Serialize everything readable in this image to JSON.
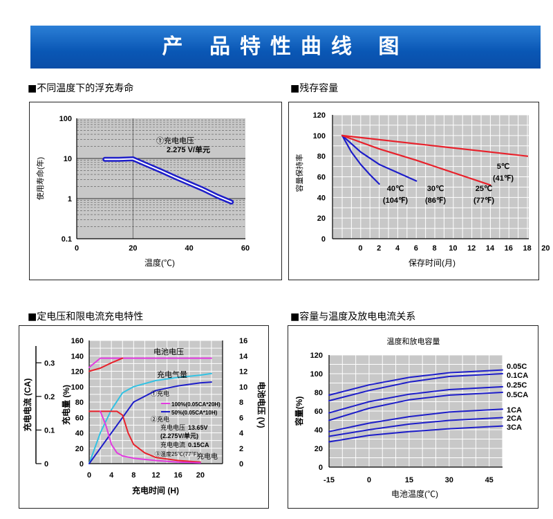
{
  "page": {
    "title": "产 品特性曲线 图"
  },
  "captions": [
    "■不同温度下的浮充寿命",
    "■残存容量",
    "■定电压和限电流充电特性",
    "■容量与温度及放电电流关系"
  ],
  "colors": {
    "banner": "#0a57b5",
    "grid_bg": "#c8c8c8",
    "blue": "#1d1dc9",
    "red": "#e8202a",
    "cyan": "#32c2e3",
    "magenta": "#e23ae0"
  },
  "chart_data": [
    {
      "type": "line",
      "title": "",
      "xlabel": "温度(℃)",
      "ylabel": "使用寿命(年)",
      "xlim": [
        0,
        60
      ],
      "ylim": [
        0.1,
        100
      ],
      "y_scale": "log",
      "x_ticks": [
        "0",
        "20",
        "40",
        "60"
      ],
      "y_ticks": [
        "100",
        "10",
        "1",
        "0.1"
      ],
      "annotations": [
        "①充电电压",
        "2.275 V/单元"
      ],
      "series": [
        {
          "x": [
            10,
            15,
            20,
            25,
            30,
            35,
            40,
            45,
            50,
            55
          ],
          "y": [
            9.5,
            9.5,
            9.8,
            6.9,
            4.9,
            3.4,
            2.4,
            1.7,
            1.15,
            0.82
          ]
        }
      ]
    },
    {
      "type": "line",
      "title": "",
      "xlabel": "保存时间(月)",
      "ylabel": "容量保持率",
      "ylim": [
        0,
        120
      ],
      "x_ticks": [
        "0",
        "2",
        "4",
        "6",
        "8",
        "10",
        "12",
        "14",
        "16",
        "18",
        "20"
      ],
      "y_ticks": [
        "0",
        "20",
        "40",
        "60",
        "80",
        "100",
        "120"
      ],
      "series": [
        {
          "name": "40℃ (104℉)",
          "color": "blue",
          "x": [
            0,
            1,
            2,
            3,
            4
          ],
          "y": [
            100,
            84,
            72,
            62,
            53
          ]
        },
        {
          "name": "30℃ (86℉)",
          "color": "blue",
          "x": [
            0,
            2,
            4,
            6,
            8
          ],
          "y": [
            100,
            84,
            72,
            64,
            56
          ]
        },
        {
          "name": "25℃ (77℉)",
          "color": "red",
          "x": [
            0,
            4,
            8,
            12,
            16
          ],
          "y": [
            100,
            87,
            76,
            64,
            52
          ]
        },
        {
          "name": "5℃ (41℉)",
          "color": "red",
          "x": [
            0,
            5,
            10,
            15,
            20
          ],
          "y": [
            100,
            95,
            90,
            85,
            80
          ]
        }
      ],
      "labels": [
        {
          "line1": "40℃",
          "line2": "(104℉)"
        },
        {
          "line1": "30℃",
          "line2": "(86℉)"
        },
        {
          "line1": "25℃",
          "line2": "(77℉)"
        },
        {
          "line1": "5℃",
          "line2": "(41℉)"
        }
      ]
    },
    {
      "type": "line",
      "title": "",
      "xlabel": "充电时间 (H)",
      "ylabel_left": "充电量 (%)",
      "ylabel_current": "充电电流 (CA)",
      "ylabel_right": "电池电压 (V)",
      "xlim": [
        0,
        24
      ],
      "x_ticks": [
        "0",
        "4",
        "8",
        "12",
        "16",
        "20"
      ],
      "y_ticks_left": [
        "0",
        "20",
        "40",
        "60",
        "80",
        "100",
        "120",
        "140",
        "160"
      ],
      "y_ticks_right": [
        "0",
        "2",
        "4",
        "6",
        "8",
        "10",
        "12",
        "14",
        "16"
      ],
      "y_ticks_current": [
        "0",
        "0.1",
        "0.2",
        "0.3"
      ],
      "annotations": [
        "电池电压",
        "充电气量",
        "充电电",
        "①充电",
        "100%(0.05CA*20H)",
        "50%(0.05CA*10H)",
        "②充电",
        "充电电压",
        "13.65V",
        "(2.275V/单元)",
        "充电电流",
        "0.15CA",
        "③温度25℃(77℉)"
      ],
      "series": [
        {
          "name": "电池电压 100%",
          "color": "magenta",
          "x": [
            0,
            2,
            4,
            8,
            12,
            16,
            20,
            22
          ],
          "y": [
            125,
            137,
            137,
            137,
            137,
            137,
            137,
            137
          ]
        },
        {
          "name": "电池电压 50%",
          "color": "red",
          "x": [
            0,
            2,
            4,
            6
          ],
          "y": [
            120,
            124,
            131,
            137
          ]
        },
        {
          "name": "充电气量 100%",
          "color": "cyan",
          "x": [
            0,
            2,
            4,
            6,
            8,
            12,
            16,
            20,
            22
          ],
          "y": [
            0,
            40,
            70,
            92,
            100,
            108,
            112,
            115,
            117
          ]
        },
        {
          "name": "充电气量 50%",
          "color": "blue",
          "x": [
            0,
            2,
            4,
            6,
            8,
            12,
            16,
            20,
            22
          ],
          "y": [
            0,
            20,
            40,
            60,
            80,
            95,
            101,
            105,
            106
          ]
        },
        {
          "name": "充电电流 50%",
          "color": "red",
          "x": [
            0,
            5,
            6,
            7,
            8,
            10,
            12,
            16,
            20
          ],
          "y": [
            68,
            68,
            63,
            40,
            25,
            14,
            8,
            4,
            2
          ]
        },
        {
          "name": "充电电流 100%",
          "color": "magenta",
          "x": [
            2,
            3,
            4,
            5,
            6,
            8,
            12,
            16,
            20
          ],
          "y": [
            68,
            50,
            25,
            14,
            10,
            7,
            4,
            2,
            1
          ]
        }
      ]
    },
    {
      "type": "line",
      "title": "温度和放电容量",
      "xlabel": "电池温度(℃)",
      "ylabel": "容量(%)",
      "xlim": [
        -15,
        50
      ],
      "ylim": [
        0,
        120
      ],
      "x_ticks": [
        "-15",
        "0",
        "15",
        "30",
        "45"
      ],
      "y_ticks": [
        "0",
        "20",
        "40",
        "60",
        "80",
        "100",
        "120"
      ],
      "series": [
        {
          "name": "0.05C",
          "x": [
            -15,
            0,
            15,
            30,
            50
          ],
          "y": [
            77,
            88,
            96,
            101,
            104
          ]
        },
        {
          "name": "0.1CA",
          "x": [
            -15,
            0,
            15,
            30,
            50
          ],
          "y": [
            71,
            82,
            91,
            97,
            100
          ]
        },
        {
          "name": "0.25C",
          "x": [
            -15,
            0,
            15,
            30,
            50
          ],
          "y": [
            58,
            70,
            78,
            83,
            86
          ]
        },
        {
          "name": "0.5CA",
          "x": [
            -15,
            0,
            15,
            30,
            50
          ],
          "y": [
            50,
            63,
            72,
            77,
            80
          ]
        },
        {
          "name": "1CA",
          "x": [
            -15,
            0,
            15,
            30,
            50
          ],
          "y": [
            38,
            47,
            54,
            59,
            62
          ]
        },
        {
          "name": "2CA",
          "x": [
            -15,
            0,
            15,
            30,
            50
          ],
          "y": [
            33,
            40,
            46,
            50,
            53
          ]
        },
        {
          "name": "3CA",
          "x": [
            -15,
            0,
            15,
            30,
            50
          ],
          "y": [
            27,
            34,
            38,
            41,
            44
          ]
        }
      ]
    }
  ]
}
